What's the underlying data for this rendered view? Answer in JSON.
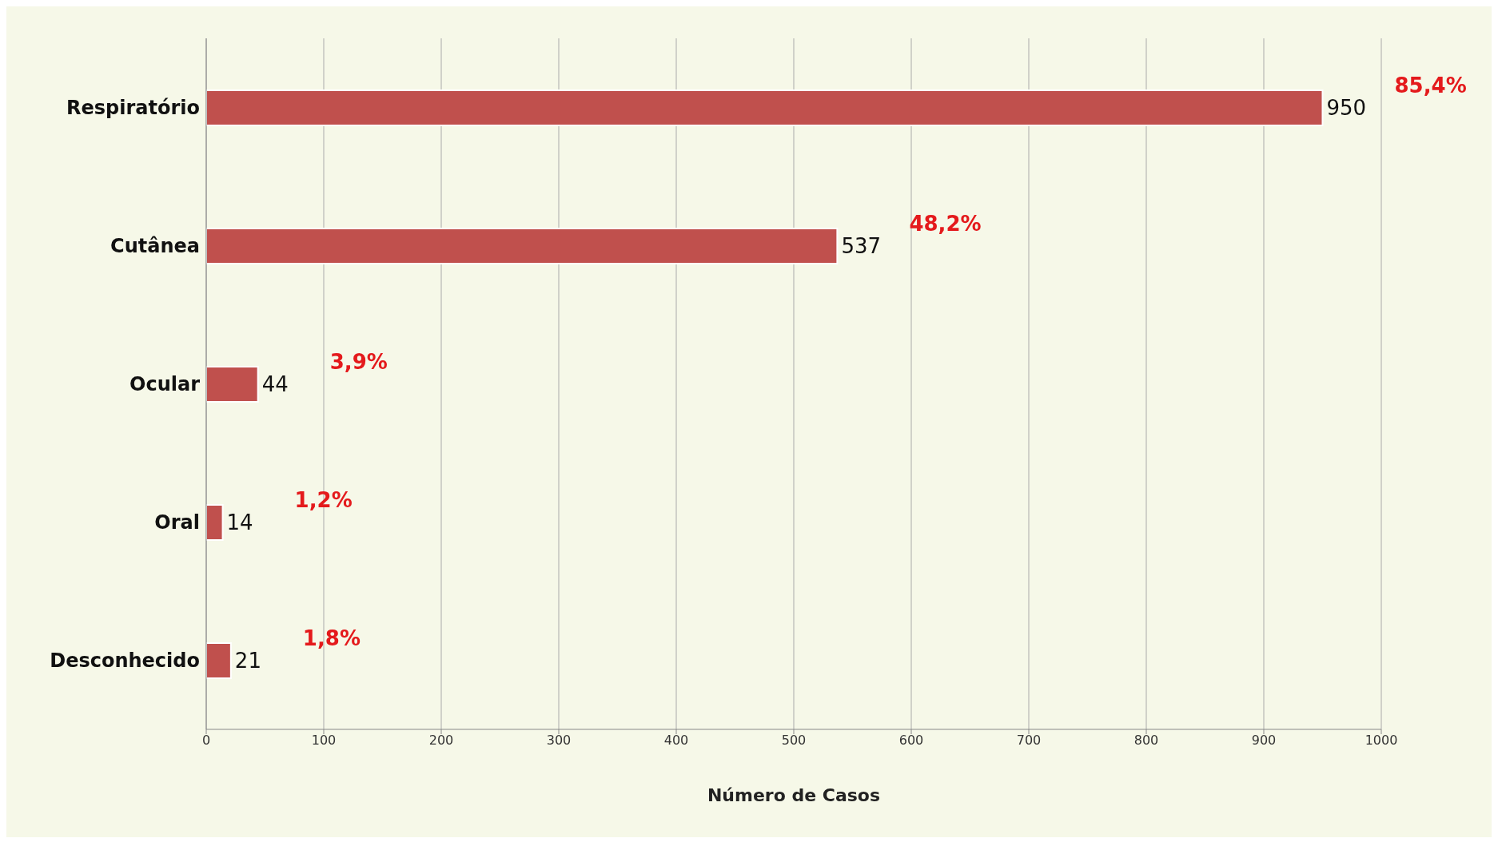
{
  "chart_data": {
    "type": "bar",
    "orientation": "horizontal",
    "xlabel": "Número de Casos",
    "categories": [
      "Respiratório",
      "Cutânea",
      "Ocular",
      "Oral",
      "Desconhecido"
    ],
    "values": [
      950,
      537,
      44,
      14,
      21
    ],
    "color": "#c0504d",
    "xlim": [
      0,
      1000
    ],
    "xticks": [
      0,
      100,
      200,
      300,
      400,
      500,
      600,
      700,
      800,
      900,
      1000
    ],
    "grid": "x",
    "data_labels": true,
    "annotations": [
      "85,4%",
      "48,2%",
      "3,9%",
      "1,2%",
      "1,8%"
    ]
  }
}
